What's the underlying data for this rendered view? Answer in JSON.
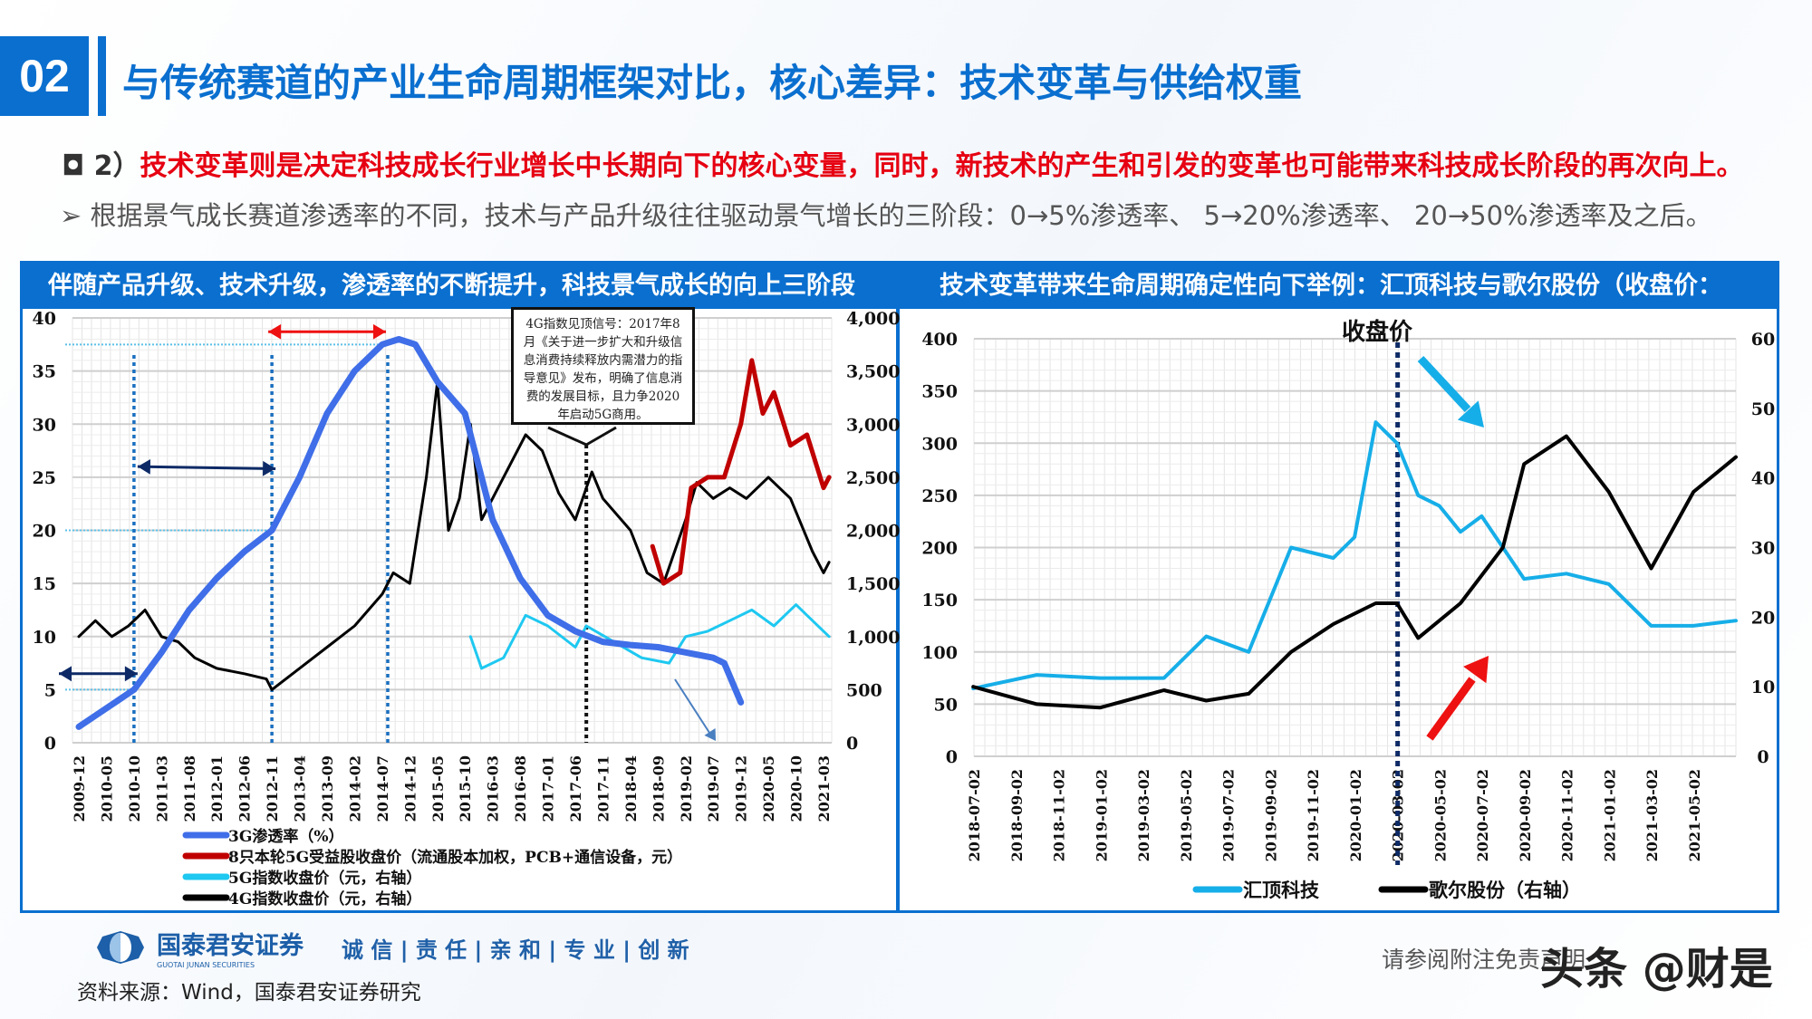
{
  "header": {
    "section_number": "02",
    "title": "与传统赛道的产业生命周期框架对比，核心差异：技术变革与供给权重"
  },
  "bullets": {
    "b1_prefix": "◘ 2）",
    "b1_text": "技术变革则是决定科技成长行业增长中长期向下的核心变量，同时，新技术的产生和引发的变革也可能带来科技成长阶段的再次向上。",
    "b2_text": "➢ 根据景气成长赛道渗透率的不同，技术与产品升级往往驱动景气增长的三阶段：0→5%渗透率、 5→20%渗透率、 20→50%渗透率及之后。"
  },
  "colors": {
    "brand": "#0a6fcf",
    "emphasis": "#e60012",
    "series_3g": "#3f6ee8",
    "series_red": "#c00000",
    "series_5g": "#1ec8f0",
    "series_4g": "#000000",
    "huiding": "#16aee8",
    "goer": "#000000"
  },
  "chart_data": [
    {
      "type": "line",
      "title": "伴随产品升级、技术升级，渗透率的不断提升，科技景气成长的向上三阶段",
      "y_left": {
        "range": [
          0,
          40
        ],
        "ticks": [
          "0",
          "5",
          "10",
          "15",
          "20",
          "25",
          "30",
          "35",
          "40"
        ]
      },
      "y_right": {
        "range": [
          0,
          4000
        ],
        "ticks": [
          "0",
          "500",
          "1,000",
          "1,500",
          "2,000",
          "2,500",
          "3,000",
          "3,500",
          "4,000"
        ]
      },
      "x_ticks": [
        "2009-12",
        "2010-05",
        "2010-10",
        "2011-03",
        "2011-08",
        "2012-01",
        "2012-06",
        "2012-11",
        "2013-04",
        "2013-09",
        "2014-02",
        "2014-07",
        "2014-12",
        "2015-05",
        "2015-10",
        "2016-03",
        "2016-08",
        "2017-01",
        "2017-06",
        "2017-11",
        "2018-04",
        "2018-09",
        "2019-02",
        "2019-07",
        "2019-12",
        "2020-05",
        "2020-10",
        "2021-03"
      ],
      "grid": true,
      "legend_position": "bottom",
      "series": [
        {
          "name": "3G渗透率（%）",
          "axis": "left",
          "color": "#3f6ee8",
          "points": [
            [
              "2009-12",
              1.5
            ],
            [
              "2010-10",
              5
            ],
            [
              "2011-03",
              8.5
            ],
            [
              "2011-08",
              12.5
            ],
            [
              "2012-01",
              15.5
            ],
            [
              "2012-06",
              18
            ],
            [
              "2012-11",
              20
            ],
            [
              "2013-04",
              25
            ],
            [
              "2013-09",
              31
            ],
            [
              "2014-02",
              35
            ],
            [
              "2014-07",
              37.5
            ],
            [
              "2014-10",
              38
            ],
            [
              "2015-01",
              37.5
            ],
            [
              "2015-05",
              34
            ],
            [
              "2015-10",
              31
            ],
            [
              "2016-03",
              21
            ],
            [
              "2016-08",
              15.5
            ],
            [
              "2017-01",
              12
            ],
            [
              "2017-06",
              10.5
            ],
            [
              "2017-11",
              9.5
            ],
            [
              "2018-04",
              9.2
            ],
            [
              "2018-09",
              9
            ],
            [
              "2019-02",
              8.5
            ],
            [
              "2019-07",
              8
            ],
            [
              "2019-09",
              7.5
            ],
            [
              "2019-12",
              3.8
            ]
          ]
        },
        {
          "name": "8只本轮5G受益股收盘价（流通股本加权，PCB+通信设备，元）",
          "axis": "right",
          "color": "#c00000",
          "points": [
            [
              "2018-08",
              1850
            ],
            [
              "2018-10",
              1500
            ],
            [
              "2019-01",
              1600
            ],
            [
              "2019-03",
              2400
            ],
            [
              "2019-06",
              2500
            ],
            [
              "2019-09",
              2500
            ],
            [
              "2019-12",
              3000
            ],
            [
              "2020-02",
              3600
            ],
            [
              "2020-04",
              3100
            ],
            [
              "2020-06",
              3300
            ],
            [
              "2020-09",
              2800
            ],
            [
              "2020-12",
              2900
            ],
            [
              "2021-03",
              2400
            ],
            [
              "2021-04",
              2500
            ]
          ]
        },
        {
          "name": "5G指数收盘价（元，右轴）",
          "axis": "right",
          "color": "#1ec8f0",
          "points": [
            [
              "2015-11",
              1000
            ],
            [
              "2016-01",
              700
            ],
            [
              "2016-05",
              800
            ],
            [
              "2016-09",
              1200
            ],
            [
              "2017-01",
              1100
            ],
            [
              "2017-06",
              900
            ],
            [
              "2017-08",
              1100
            ],
            [
              "2018-01",
              950
            ],
            [
              "2018-06",
              800
            ],
            [
              "2018-11",
              750
            ],
            [
              "2019-02",
              1000
            ],
            [
              "2019-06",
              1050
            ],
            [
              "2019-10",
              1150
            ],
            [
              "2020-02",
              1250
            ],
            [
              "2020-06",
              1100
            ],
            [
              "2020-10",
              1300
            ],
            [
              "2021-01",
              1150
            ],
            [
              "2021-04",
              1000
            ]
          ]
        },
        {
          "name": "4G指数收盘价（元，右轴）",
          "axis": "right",
          "color": "#000000",
          "points": [
            [
              "2009-12",
              1000
            ],
            [
              "2010-03",
              1150
            ],
            [
              "2010-06",
              1000
            ],
            [
              "2010-09",
              1100
            ],
            [
              "2010-12",
              1250
            ],
            [
              "2011-03",
              1000
            ],
            [
              "2011-06",
              950
            ],
            [
              "2011-09",
              800
            ],
            [
              "2012-01",
              700
            ],
            [
              "2012-06",
              650
            ],
            [
              "2012-10",
              600
            ],
            [
              "2012-11",
              500
            ],
            [
              "2013-04",
              700
            ],
            [
              "2013-09",
              900
            ],
            [
              "2014-02",
              1100
            ],
            [
              "2014-07",
              1400
            ],
            [
              "2014-09",
              1600
            ],
            [
              "2014-12",
              1500
            ],
            [
              "2015-03",
              2500
            ],
            [
              "2015-05",
              3400
            ],
            [
              "2015-07",
              2000
            ],
            [
              "2015-09",
              2300
            ],
            [
              "2015-11",
              3000
            ],
            [
              "2016-01",
              2100
            ],
            [
              "2016-05",
              2500
            ],
            [
              "2016-09",
              2900
            ],
            [
              "2016-12",
              2750
            ],
            [
              "2017-03",
              2350
            ],
            [
              "2017-06",
              2100
            ],
            [
              "2017-09",
              2550
            ],
            [
              "2017-11",
              2300
            ],
            [
              "2018-04",
              2000
            ],
            [
              "2018-07",
              1600
            ],
            [
              "2018-10",
              1500
            ],
            [
              "2019-02",
              2100
            ],
            [
              "2019-04",
              2450
            ],
            [
              "2019-07",
              2300
            ],
            [
              "2019-10",
              2400
            ],
            [
              "2020-01",
              2300
            ],
            [
              "2020-05",
              2500
            ],
            [
              "2020-09",
              2300
            ],
            [
              "2021-01",
              1800
            ],
            [
              "2021-03",
              1600
            ],
            [
              "2021-04",
              1700
            ]
          ]
        }
      ],
      "markers": {
        "vertical_dates": [
          "2010-10",
          "2012-11",
          "2014-08"
        ],
        "signal_date": "2017-08",
        "horizontal_levels": [
          37.5,
          20,
          5
        ]
      },
      "annotation": "4G指数见顶信号：2017年8月《关于进一步扩大和升级信息消费持续释放内需潜力的指导意见》发布，明确了信息消费的发展目标，且力争2020年启动5G商用。"
    },
    {
      "type": "line",
      "title": "技术变革带来生命周期确定性向下举例：汇顶科技与歌尔股份（收盘价：",
      "subtitle": "收盘价",
      "y_left": {
        "range": [
          0,
          400
        ],
        "ticks": [
          "0",
          "50",
          "100",
          "150",
          "200",
          "250",
          "300",
          "350",
          "400"
        ]
      },
      "y_right": {
        "range": [
          0,
          60
        ],
        "ticks": [
          "0",
          "10",
          "20",
          "30",
          "40",
          "50",
          "60"
        ]
      },
      "x_ticks": [
        "2018-07-02",
        "2018-09-02",
        "2018-11-02",
        "2019-01-02",
        "2019-03-02",
        "2019-05-02",
        "2019-07-02",
        "2019-09-02",
        "2019-11-02",
        "2020-01-02",
        "2020-03-02",
        "2020-05-02",
        "2020-07-02",
        "2020-09-02",
        "2020-11-02",
        "2021-01-02",
        "2021-03-02",
        "2021-05-02"
      ],
      "grid": true,
      "legend_position": "bottom",
      "series": [
        {
          "name": "汇顶科技",
          "axis": "left",
          "color": "#16aee8",
          "points": [
            [
              "2018-07",
              65
            ],
            [
              "2018-10",
              78
            ],
            [
              "2019-01",
              75
            ],
            [
              "2019-04",
              75
            ],
            [
              "2019-06",
              115
            ],
            [
              "2019-08",
              100
            ],
            [
              "2019-09",
              150
            ],
            [
              "2019-10",
              200
            ],
            [
              "2019-12",
              190
            ],
            [
              "2020-01",
              210
            ],
            [
              "2020-02",
              320
            ],
            [
              "2020-03",
              300
            ],
            [
              "2020-04",
              250
            ],
            [
              "2020-05",
              240
            ],
            [
              "2020-06",
              215
            ],
            [
              "2020-07",
              230
            ],
            [
              "2020-09",
              170
            ],
            [
              "2020-11",
              175
            ],
            [
              "2021-01",
              165
            ],
            [
              "2021-03",
              125
            ],
            [
              "2021-05",
              125
            ],
            [
              "2021-07",
              130
            ]
          ]
        },
        {
          "name": "歌尔股份（右轴）",
          "axis": "right",
          "color": "#000000",
          "points": [
            [
              "2018-07",
              10
            ],
            [
              "2018-10",
              7.5
            ],
            [
              "2019-01",
              7
            ],
            [
              "2019-04",
              9.5
            ],
            [
              "2019-06",
              8
            ],
            [
              "2019-08",
              9
            ],
            [
              "2019-10",
              15
            ],
            [
              "2019-12",
              19
            ],
            [
              "2020-02",
              22
            ],
            [
              "2020-03",
              22
            ],
            [
              "2020-04",
              17
            ],
            [
              "2020-06",
              22
            ],
            [
              "2020-08",
              30
            ],
            [
              "2020-09",
              42
            ],
            [
              "2020-11",
              46
            ],
            [
              "2021-01",
              38
            ],
            [
              "2021-03",
              27
            ],
            [
              "2021-05",
              38
            ],
            [
              "2021-07",
              43
            ]
          ]
        }
      ],
      "markers": {
        "vertical_dates": [
          "2020-03"
        ]
      }
    }
  ],
  "footer": {
    "logo_cn": "国泰君安证券",
    "logo_en": "GUOTAI JUNAN SECURITIES",
    "motto": "诚 信 | 责 任 | 亲 和 | 专 业 | 创 新",
    "source": "资料来源：Wind，国泰君安证券研究",
    "disclaimer": "请参阅附注免责声明",
    "watermark": "头条 @财是"
  }
}
